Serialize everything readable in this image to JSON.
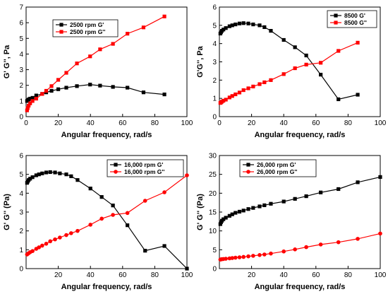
{
  "colors": {
    "series_black": "#000000",
    "series_red": "#ff0000",
    "axis": "#000000",
    "background": "#ffffff"
  },
  "chart_data": [
    {
      "id": "panel-1",
      "type": "line",
      "xlabel": "Angular frequency, rad/s",
      "ylabel": "G' G'', Pa",
      "xlim": [
        0,
        100
      ],
      "ylim": [
        0,
        7
      ],
      "xticks": [
        0,
        20,
        40,
        60,
        80,
        100
      ],
      "yticks": [
        0,
        1,
        2,
        3,
        4,
        5,
        6,
        7
      ],
      "grid": false,
      "legend_position": "top-left",
      "series": [
        {
          "name": "2500 rpm G'",
          "color": "#000000",
          "marker": "square",
          "x": [
            0.6,
            1.0,
            1.6,
            2.5,
            4,
            6.3,
            10,
            12.5,
            15.8,
            20,
            25,
            31.6,
            39.8,
            46,
            54,
            63,
            73,
            86
          ],
          "y": [
            1.0,
            1.05,
            1.1,
            1.15,
            1.2,
            1.35,
            1.45,
            1.55,
            1.65,
            1.75,
            1.85,
            1.95,
            2.05,
            1.98,
            1.9,
            1.85,
            1.55,
            1.42
          ]
        },
        {
          "name": "2500 rpm G''",
          "color": "#ff0000",
          "marker": "square",
          "x": [
            0.6,
            1.0,
            1.6,
            2.5,
            4,
            6.3,
            10,
            12.5,
            15.8,
            20,
            25,
            31.6,
            39.8,
            46,
            54,
            63,
            73,
            86
          ],
          "y": [
            0.4,
            0.55,
            0.7,
            0.85,
            1.0,
            1.15,
            1.45,
            1.65,
            1.95,
            2.35,
            2.8,
            3.4,
            3.85,
            4.3,
            4.65,
            5.3,
            5.7,
            6.4
          ]
        }
      ]
    },
    {
      "id": "panel-2",
      "type": "line",
      "xlabel": "Angular frequency, rad/s",
      "ylabel": "G'G'', Pa",
      "xlim": [
        0,
        100
      ],
      "ylim": [
        0,
        6
      ],
      "xticks": [
        0,
        20,
        40,
        60,
        80,
        100
      ],
      "yticks": [
        0,
        1,
        2,
        3,
        4,
        5,
        6
      ],
      "grid": false,
      "legend_position": "top-right",
      "series": [
        {
          "name": "8500 G'",
          "color": "#000000",
          "marker": "square",
          "x": [
            0.6,
            1,
            1.6,
            2.5,
            4,
            6.3,
            8,
            10,
            12.5,
            15,
            18,
            21,
            25,
            28,
            32,
            40,
            47,
            54,
            63,
            74,
            86
          ],
          "y": [
            4.55,
            4.62,
            4.7,
            4.77,
            4.85,
            4.95,
            5.0,
            5.05,
            5.1,
            5.12,
            5.1,
            5.05,
            5.0,
            4.9,
            4.7,
            4.2,
            3.8,
            3.35,
            2.3,
            0.95,
            1.2
          ]
        },
        {
          "name": "8500 G''",
          "color": "#ff0000",
          "marker": "square",
          "x": [
            0.6,
            1,
            1.6,
            2.5,
            4,
            6.3,
            8,
            10,
            12.5,
            15,
            18,
            21,
            25,
            28,
            32,
            40,
            47,
            54,
            63,
            74,
            86
          ],
          "y": [
            0.75,
            0.78,
            0.82,
            0.87,
            0.93,
            1.05,
            1.13,
            1.22,
            1.32,
            1.45,
            1.55,
            1.65,
            1.78,
            1.88,
            2.0,
            2.33,
            2.65,
            2.85,
            2.95,
            3.6,
            4.05
          ]
        }
      ]
    },
    {
      "id": "panel-3",
      "type": "line",
      "xlabel": "Angular frequency, rad/s",
      "ylabel": "G' G'' (Pa)",
      "xlim": [
        0,
        100
      ],
      "ylim": [
        0,
        6
      ],
      "xticks": [
        20,
        40,
        60,
        80,
        100
      ],
      "yticks": [
        0,
        1,
        2,
        3,
        4,
        5,
        6
      ],
      "grid": false,
      "legend_position": "top-right",
      "series": [
        {
          "name": "16,000 rpm G'",
          "color": "#000000",
          "marker": "square",
          "x": [
            0.6,
            1,
            1.6,
            2.5,
            4,
            6.3,
            8,
            10,
            12.5,
            15,
            18,
            21,
            25,
            28,
            32,
            40,
            47,
            54,
            63,
            74,
            86,
            100
          ],
          "y": [
            4.55,
            4.62,
            4.7,
            4.77,
            4.85,
            4.95,
            5.0,
            5.05,
            5.1,
            5.12,
            5.1,
            5.05,
            5.0,
            4.9,
            4.7,
            4.25,
            3.8,
            3.35,
            2.3,
            0.95,
            1.2,
            0.0
          ]
        },
        {
          "name": "16,000 rpm G''",
          "color": "#ff0000",
          "marker": "circle",
          "x": [
            0.6,
            1,
            1.6,
            2.5,
            4,
            6.3,
            8,
            10,
            12.5,
            15,
            18,
            21,
            25,
            28,
            32,
            40,
            47,
            54,
            63,
            74,
            86,
            100
          ],
          "y": [
            0.75,
            0.78,
            0.82,
            0.87,
            0.93,
            1.05,
            1.13,
            1.22,
            1.32,
            1.45,
            1.55,
            1.65,
            1.78,
            1.88,
            2.0,
            2.33,
            2.65,
            2.85,
            2.95,
            3.6,
            4.05,
            4.95
          ]
        }
      ]
    },
    {
      "id": "panel-4",
      "type": "line",
      "xlabel": "Angular frequency, rad/s",
      "ylabel": "G' G'' (Pa)",
      "xlim": [
        0,
        100
      ],
      "ylim": [
        0,
        30
      ],
      "xticks": [
        20,
        40,
        60,
        80,
        100
      ],
      "yticks": [
        0,
        5,
        10,
        15,
        20,
        25,
        30
      ],
      "grid": false,
      "legend_position": "top-left",
      "series": [
        {
          "name": "26,000 rpm G'",
          "color": "#000000",
          "marker": "square",
          "x": [
            0.6,
            1,
            1.6,
            2.5,
            4,
            6.3,
            8,
            10,
            12.5,
            15,
            18,
            21,
            25,
            28,
            32,
            40,
            47,
            54,
            63,
            74,
            86,
            100
          ],
          "y": [
            11.8,
            12.3,
            12.7,
            13.1,
            13.5,
            14.0,
            14.4,
            14.8,
            15.1,
            15.4,
            15.8,
            16.1,
            16.5,
            16.8,
            17.2,
            17.8,
            18.5,
            19.2,
            20.2,
            21.1,
            22.9,
            24.3
          ]
        },
        {
          "name": "26,000 rpm G''",
          "color": "#ff0000",
          "marker": "circle",
          "x": [
            0.6,
            1,
            1.6,
            2.5,
            4,
            6.3,
            8,
            10,
            12.5,
            15,
            18,
            21,
            25,
            28,
            32,
            40,
            47,
            54,
            63,
            74,
            86,
            100
          ],
          "y": [
            2.4,
            2.45,
            2.5,
            2.55,
            2.62,
            2.72,
            2.8,
            2.9,
            3.0,
            3.1,
            3.25,
            3.4,
            3.6,
            3.75,
            4.0,
            4.55,
            5.1,
            5.7,
            6.4,
            7.0,
            7.9,
            9.3
          ]
        }
      ]
    }
  ]
}
